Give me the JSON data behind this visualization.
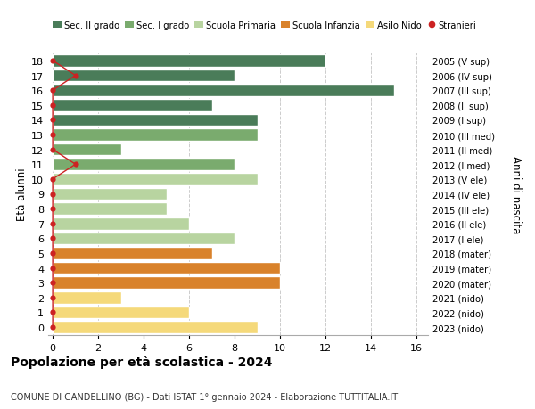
{
  "ages": [
    18,
    17,
    16,
    15,
    14,
    13,
    12,
    11,
    10,
    9,
    8,
    7,
    6,
    5,
    4,
    3,
    2,
    1,
    0
  ],
  "years": [
    "2005 (V sup)",
    "2006 (IV sup)",
    "2007 (III sup)",
    "2008 (II sup)",
    "2009 (I sup)",
    "2010 (III med)",
    "2011 (II med)",
    "2012 (I med)",
    "2013 (V ele)",
    "2014 (IV ele)",
    "2015 (III ele)",
    "2016 (II ele)",
    "2017 (I ele)",
    "2018 (mater)",
    "2019 (mater)",
    "2020 (mater)",
    "2021 (nido)",
    "2022 (nido)",
    "2023 (nido)"
  ],
  "values": [
    12,
    8,
    15,
    7,
    9,
    9,
    3,
    8,
    9,
    5,
    5,
    6,
    8,
    7,
    10,
    10,
    3,
    6,
    9
  ],
  "colors": [
    "#4a7c59",
    "#4a7c59",
    "#4a7c59",
    "#4a7c59",
    "#4a7c59",
    "#7aab6e",
    "#7aab6e",
    "#7aab6e",
    "#b8d4a0",
    "#b8d4a0",
    "#b8d4a0",
    "#b8d4a0",
    "#b8d4a0",
    "#d9822b",
    "#d9822b",
    "#d9822b",
    "#f5d97a",
    "#f5d97a",
    "#f5d97a"
  ],
  "stranieri_values": [
    0,
    1,
    0,
    0,
    0,
    0,
    0,
    1,
    0,
    0,
    0,
    0,
    0,
    0,
    0,
    0,
    0,
    0,
    0
  ],
  "legend_labels": [
    "Sec. II grado",
    "Sec. I grado",
    "Scuola Primaria",
    "Scuola Infanzia",
    "Asilo Nido",
    "Stranieri"
  ],
  "legend_colors": [
    "#4a7c59",
    "#7aab6e",
    "#b8d4a0",
    "#d9822b",
    "#f5d97a",
    "#cc2222"
  ],
  "title": "Popolazione per età scolastica - 2024",
  "subtitle": "COMUNE DI GANDELLINO (BG) - Dati ISTAT 1° gennaio 2024 - Elaborazione TUTTITALIA.IT",
  "ylabel": "Età alunni",
  "right_ylabel": "Anni di nascita",
  "xticks": [
    0,
    2,
    4,
    6,
    8,
    10,
    12,
    14,
    16
  ],
  "bg_color": "#ffffff",
  "bar_edge_color": "#ffffff",
  "stranieri_line_color": "#cc2222",
  "stranieri_dot_color": "#cc2222",
  "grid_color": "#cccccc",
  "xlim_left": -0.2,
  "xlim_right": 16.5
}
